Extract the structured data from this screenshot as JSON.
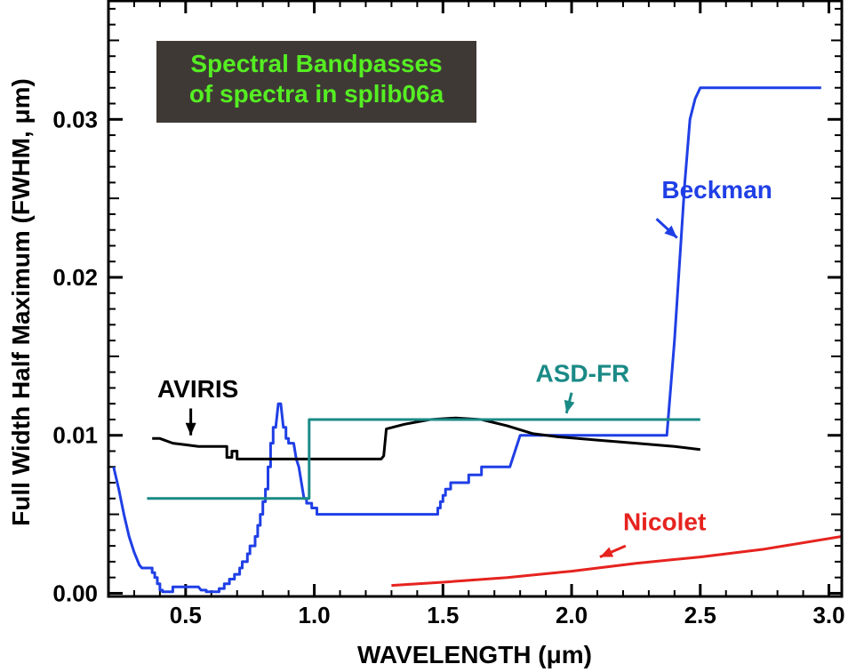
{
  "chart_data": {
    "type": "line",
    "title_lines": [
      "Spectral Bandpasses",
      "of spectra in splib06a"
    ],
    "xlabel": "WAVELENGTH (μm)",
    "ylabel": "Full Width Half Maximum (FWHM, μm)",
    "xlim": [
      0.2,
      3.05
    ],
    "ylim": [
      -0.0002,
      0.0375
    ],
    "x_ticks": [
      0.5,
      1.0,
      1.5,
      2.0,
      2.5,
      3.0
    ],
    "x_tick_labels": [
      "0.5",
      "1.0",
      "1.5",
      "2.0",
      "2.5",
      "3.0"
    ],
    "y_ticks": [
      0.0,
      0.01,
      0.02,
      0.03
    ],
    "y_tick_labels": [
      "0.00",
      "0.01",
      "0.02",
      "0.03"
    ],
    "grid": false,
    "colors": {
      "title_box_bg": "#3f3936",
      "title_text": "#55ee22",
      "AVIRIS": "#000000",
      "ASD-FR": "#1a8a86",
      "Beckman": "#1f3fe6",
      "Nicolet": "#e6231f"
    },
    "series": [
      {
        "name": "Beckman",
        "points": [
          [
            0.22,
            0.008
          ],
          [
            0.24,
            0.0066
          ],
          [
            0.26,
            0.005
          ],
          [
            0.28,
            0.0036
          ],
          [
            0.3,
            0.0026
          ],
          [
            0.32,
            0.0018
          ],
          [
            0.33,
            0.0016
          ],
          [
            0.35,
            0.0016
          ],
          [
            0.37,
            0.0016
          ],
          [
            0.37,
            0.0013
          ],
          [
            0.38,
            0.0013
          ],
          [
            0.38,
            0.001
          ],
          [
            0.39,
            0.001
          ],
          [
            0.39,
            0.0006
          ],
          [
            0.4,
            0.0006
          ],
          [
            0.4,
            0.0002
          ],
          [
            0.41,
            0.0002
          ],
          [
            0.41,
            0.0001
          ],
          [
            0.45,
            0.0001
          ],
          [
            0.45,
            0.0004
          ],
          [
            0.5,
            0.0004
          ],
          [
            0.53,
            0.0004
          ],
          [
            0.55,
            0.0004
          ],
          [
            0.56,
            0.0002
          ],
          [
            0.58,
            0.0002
          ],
          [
            0.58,
            0.0001
          ],
          [
            0.63,
            0.0001
          ],
          [
            0.63,
            0.0003
          ],
          [
            0.65,
            0.0003
          ],
          [
            0.65,
            0.0006
          ],
          [
            0.67,
            0.0006
          ],
          [
            0.67,
            0.0009
          ],
          [
            0.69,
            0.0009
          ],
          [
            0.69,
            0.0012
          ],
          [
            0.71,
            0.0012
          ],
          [
            0.71,
            0.0016
          ],
          [
            0.72,
            0.0016
          ],
          [
            0.72,
            0.002
          ],
          [
            0.74,
            0.002
          ],
          [
            0.74,
            0.0025
          ],
          [
            0.75,
            0.0025
          ],
          [
            0.75,
            0.003
          ],
          [
            0.77,
            0.003
          ],
          [
            0.77,
            0.0036
          ],
          [
            0.78,
            0.0036
          ],
          [
            0.78,
            0.0043
          ],
          [
            0.79,
            0.0043
          ],
          [
            0.79,
            0.005
          ],
          [
            0.8,
            0.005
          ],
          [
            0.8,
            0.0058
          ],
          [
            0.81,
            0.0058
          ],
          [
            0.81,
            0.0066
          ],
          [
            0.82,
            0.0066
          ],
          [
            0.82,
            0.008
          ],
          [
            0.83,
            0.008
          ],
          [
            0.83,
            0.0095
          ],
          [
            0.84,
            0.0095
          ],
          [
            0.84,
            0.0105
          ],
          [
            0.85,
            0.0105
          ],
          [
            0.86,
            0.012
          ],
          [
            0.87,
            0.012
          ],
          [
            0.88,
            0.0105
          ],
          [
            0.89,
            0.0105
          ],
          [
            0.89,
            0.0098
          ],
          [
            0.9,
            0.0098
          ],
          [
            0.9,
            0.0095
          ],
          [
            0.92,
            0.0095
          ],
          [
            0.93,
            0.0085
          ],
          [
            0.94,
            0.008
          ],
          [
            0.95,
            0.007
          ],
          [
            0.96,
            0.006
          ],
          [
            0.97,
            0.006
          ],
          [
            0.97,
            0.0057
          ],
          [
            0.99,
            0.0057
          ],
          [
            0.99,
            0.0054
          ],
          [
            1.01,
            0.0054
          ],
          [
            1.01,
            0.005
          ],
          [
            1.05,
            0.005
          ],
          [
            1.1,
            0.005
          ],
          [
            1.2,
            0.005
          ],
          [
            1.3,
            0.005
          ],
          [
            1.4,
            0.005
          ],
          [
            1.48,
            0.005
          ],
          [
            1.48,
            0.0054
          ],
          [
            1.49,
            0.0054
          ],
          [
            1.49,
            0.0058
          ],
          [
            1.5,
            0.0058
          ],
          [
            1.5,
            0.0062
          ],
          [
            1.51,
            0.0062
          ],
          [
            1.51,
            0.0066
          ],
          [
            1.53,
            0.0066
          ],
          [
            1.53,
            0.007
          ],
          [
            1.6,
            0.007
          ],
          [
            1.6,
            0.0075
          ],
          [
            1.65,
            0.0075
          ],
          [
            1.65,
            0.008
          ],
          [
            1.7,
            0.008
          ],
          [
            1.72,
            0.008
          ],
          [
            1.73,
            0.008
          ],
          [
            1.75,
            0.008
          ],
          [
            1.76,
            0.008
          ],
          [
            1.77,
            0.0085
          ],
          [
            1.78,
            0.009
          ],
          [
            1.79,
            0.0095
          ],
          [
            1.8,
            0.01
          ],
          [
            2.0,
            0.01
          ],
          [
            2.2,
            0.01
          ],
          [
            2.37,
            0.01
          ],
          [
            2.4,
            0.016
          ],
          [
            2.42,
            0.021
          ],
          [
            2.44,
            0.026
          ],
          [
            2.46,
            0.03
          ],
          [
            2.48,
            0.0313
          ],
          [
            2.5,
            0.032
          ],
          [
            2.7,
            0.032
          ],
          [
            2.97,
            0.032
          ]
        ]
      },
      {
        "name": "AVIRIS",
        "points": [
          [
            0.37,
            0.0098
          ],
          [
            0.4,
            0.0098
          ],
          [
            0.45,
            0.0095
          ],
          [
            0.5,
            0.0094
          ],
          [
            0.55,
            0.0093
          ],
          [
            0.6,
            0.0093
          ],
          [
            0.66,
            0.0093
          ],
          [
            0.66,
            0.0086
          ],
          [
            0.68,
            0.0086
          ],
          [
            0.68,
            0.009
          ],
          [
            0.7,
            0.009
          ],
          [
            0.7,
            0.0085
          ],
          [
            0.8,
            0.0085
          ],
          [
            1.0,
            0.0085
          ],
          [
            1.15,
            0.0085
          ],
          [
            1.26,
            0.0085
          ],
          [
            1.27,
            0.0087
          ],
          [
            1.28,
            0.0104
          ],
          [
            1.35,
            0.0107
          ],
          [
            1.45,
            0.011
          ],
          [
            1.55,
            0.0111
          ],
          [
            1.65,
            0.011
          ],
          [
            1.75,
            0.0106
          ],
          [
            1.85,
            0.0101
          ],
          [
            1.95,
            0.0099
          ],
          [
            2.1,
            0.0097
          ],
          [
            2.25,
            0.0095
          ],
          [
            2.4,
            0.0093
          ],
          [
            2.5,
            0.0091
          ]
        ]
      },
      {
        "name": "ASD-FR",
        "points": [
          [
            0.35,
            0.006
          ],
          [
            0.98,
            0.006
          ],
          [
            0.98,
            0.011
          ],
          [
            1.5,
            0.011
          ],
          [
            2.0,
            0.011
          ],
          [
            2.5,
            0.011
          ]
        ]
      },
      {
        "name": "Nicolet",
        "points": [
          [
            1.3,
            0.0005
          ],
          [
            1.5,
            0.0007
          ],
          [
            1.75,
            0.001
          ],
          [
            2.0,
            0.0014
          ],
          [
            2.25,
            0.0019
          ],
          [
            2.5,
            0.0023
          ],
          [
            2.75,
            0.0028
          ],
          [
            3.05,
            0.0036
          ]
        ]
      }
    ],
    "annotations": [
      {
        "label": "Beckman",
        "text_at": [
          2.35,
          0.025
        ],
        "arrow_from": [
          2.33,
          0.0237
        ],
        "arrow_to": [
          2.41,
          0.0225
        ]
      },
      {
        "label": "AVIRIS",
        "text_at": [
          0.39,
          0.0124
        ],
        "arrow_from": [
          0.52,
          0.0117
        ],
        "arrow_to": [
          0.52,
          0.01
        ]
      },
      {
        "label": "ASD-FR",
        "text_at": [
          1.86,
          0.0134
        ],
        "arrow_from": [
          2.0,
          0.0127
        ],
        "arrow_to": [
          1.98,
          0.0114
        ]
      },
      {
        "label": "Nicolet",
        "text_at": [
          2.2,
          0.004
        ],
        "arrow_from": [
          2.21,
          0.003
        ],
        "arrow_to": [
          2.11,
          0.0023
        ]
      }
    ]
  }
}
